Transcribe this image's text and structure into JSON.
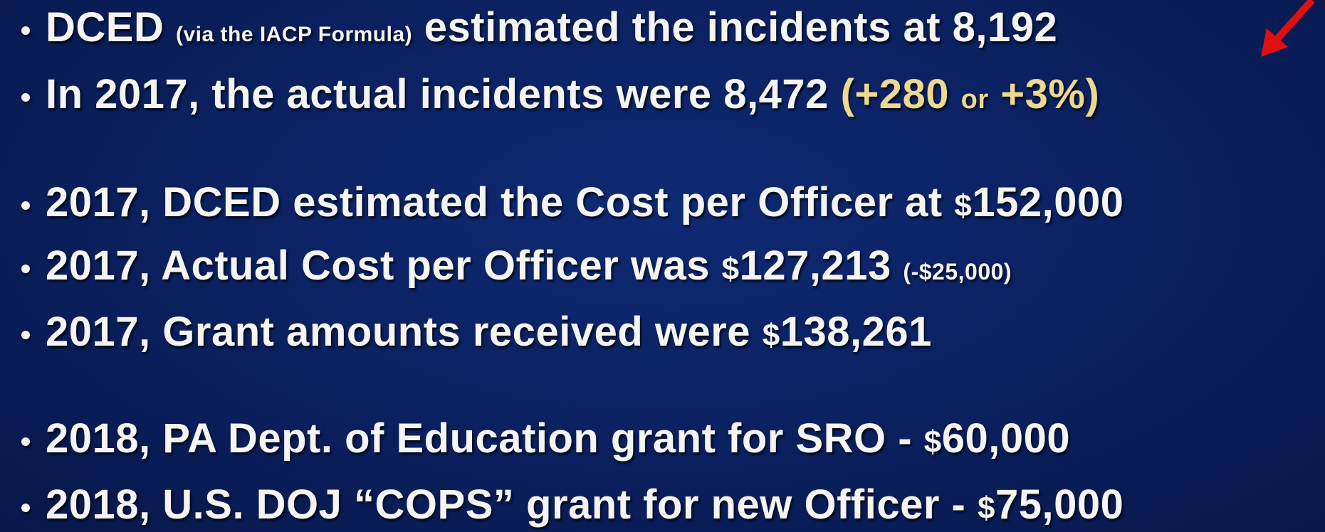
{
  "lines": [
    [
      "DCED",
      "(via the IACP Formula)",
      "estimated the incidents at 8,192"
    ],
    [
      "In 2017, the actual incidents were 8,472",
      "(+280",
      "or",
      "+3%)"
    ],
    [
      "2017, DCED estimated the Cost per Officer at",
      "$",
      "152,000"
    ],
    [
      "2017, Actual Cost per Officer was",
      "$",
      "127,213",
      "(-$25,000)"
    ],
    [
      "2017, Grant amounts received were",
      "$",
      "138,261"
    ],
    [
      "2018, PA Dept. of Education grant for SRO -",
      "$",
      "60,000"
    ],
    [
      "2018, U.S. DOJ “COPS” grant for new Officer -",
      "$",
      "75,000"
    ]
  ]
}
